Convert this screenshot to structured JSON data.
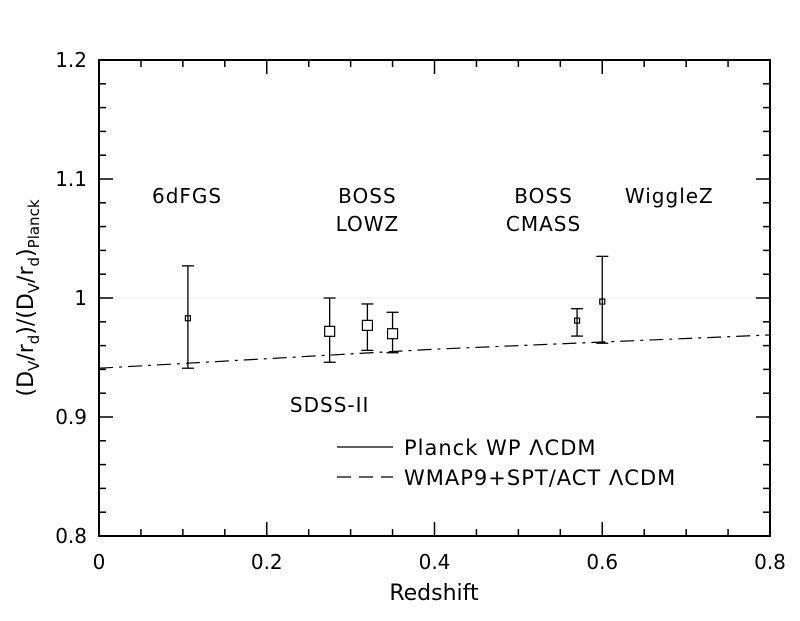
{
  "chart_data": {
    "type": "scatter",
    "xlabel": "Redshift",
    "ylabel": {
      "parts": [
        "(D",
        "V",
        "/r",
        "d",
        ")/(D",
        "V",
        "/r",
        "d",
        ")",
        "Planck"
      ]
    },
    "xlim": [
      0,
      0.8
    ],
    "ylim": [
      0.8,
      1.2
    ],
    "xticks": [
      "0",
      "0.2",
      "0.4",
      "0.6",
      "0.8"
    ],
    "yticks": [
      "0.8",
      "0.9",
      "1",
      "1.1",
      "1.2"
    ],
    "grid": false,
    "series": [
      {
        "name": "Planck WP ΛCDM",
        "style": "solid",
        "x": [
          0,
          0.8
        ],
        "y": [
          1.0,
          1.0
        ]
      },
      {
        "name": "WMAP9+SPT/ACT ΛCDM",
        "style": "dashed",
        "x": [
          0,
          0.1,
          0.2,
          0.3,
          0.4,
          0.5,
          0.6,
          0.7,
          0.8
        ],
        "y": [
          0.941,
          0.945,
          0.949,
          0.953,
          0.957,
          0.96,
          0.963,
          0.966,
          0.969
        ]
      }
    ],
    "points": [
      {
        "x": 0.106,
        "y": 0.983,
        "yerr_low": 0.042,
        "yerr_high": 0.044,
        "marker": "square-small"
      },
      {
        "x": 0.275,
        "y": 0.972,
        "yerr_low": 0.026,
        "yerr_high": 0.028,
        "marker": "square-open"
      },
      {
        "x": 0.32,
        "y": 0.977,
        "yerr_low": 0.021,
        "yerr_high": 0.018,
        "marker": "square-open"
      },
      {
        "x": 0.35,
        "y": 0.97,
        "yerr_low": 0.016,
        "yerr_high": 0.018,
        "marker": "square-open"
      },
      {
        "x": 0.57,
        "y": 0.981,
        "yerr_low": 0.013,
        "yerr_high": 0.01,
        "marker": "square-small"
      },
      {
        "x": 0.6,
        "y": 0.997,
        "yerr_low": 0.035,
        "yerr_high": 0.038,
        "marker": "square-small"
      }
    ],
    "annotations": [
      {
        "lines": [
          "6dFGS"
        ],
        "x": 0.105,
        "y": 1.08
      },
      {
        "lines": [
          "BOSS",
          "LOWZ"
        ],
        "x": 0.32,
        "y": 1.08
      },
      {
        "lines": [
          "BOSS",
          "CMASS"
        ],
        "x": 0.53,
        "y": 1.08
      },
      {
        "lines": [
          "WiggleZ"
        ],
        "x": 0.68,
        "y": 1.08
      },
      {
        "lines": [
          "SDSS-II"
        ],
        "x": 0.275,
        "y": 0.904
      }
    ],
    "legend": {
      "placement": "bottom-right",
      "entries": [
        {
          "label": "Planck  WP  ΛCDM",
          "style": "solid"
        },
        {
          "label": "WMAP9+SPT/ACT  ΛCDM",
          "style": "dashed"
        }
      ]
    }
  }
}
